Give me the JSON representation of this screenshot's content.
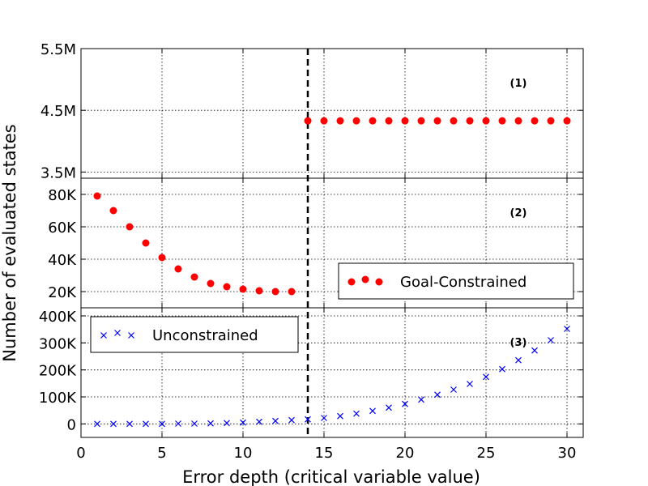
{
  "chart_data": {
    "type": "scatter",
    "xlabel": "Error depth (critical variable value)",
    "ylabel": "Number of evaluated states",
    "xlim": [
      0,
      31
    ],
    "xticks": [
      "0",
      "5",
      "10",
      "15",
      "20",
      "25",
      "30"
    ],
    "grid": true,
    "vline": {
      "x": 14,
      "style": "dashed"
    },
    "panels": [
      {
        "label": "(1)",
        "ylim": [
          3.4,
          5.5
        ],
        "yticks": [
          {
            "v": 3.5,
            "t": "3.5M"
          },
          {
            "v": 4.5,
            "t": "4.5M"
          },
          {
            "v": 5.5,
            "t": "5.5M"
          }
        ],
        "series": [
          {
            "name": "Goal-Constrained",
            "marker": "circle",
            "color": "#ff0000",
            "x": [
              14,
              15,
              16,
              17,
              18,
              19,
              20,
              21,
              22,
              23,
              24,
              25,
              26,
              27,
              28,
              29,
              30
            ],
            "y": [
              4.33,
              4.33,
              4.33,
              4.33,
              4.33,
              4.33,
              4.33,
              4.33,
              4.33,
              4.33,
              4.33,
              4.33,
              4.33,
              4.33,
              4.33,
              4.33,
              4.33
            ]
          }
        ]
      },
      {
        "label": "(2)",
        "ylim": [
          10,
          90
        ],
        "yticks": [
          {
            "v": 20,
            "t": "20K"
          },
          {
            "v": 40,
            "t": "40K"
          },
          {
            "v": 60,
            "t": "60K"
          },
          {
            "v": 80,
            "t": "80K"
          }
        ],
        "legend": {
          "entry": "Goal-Constrained",
          "position": "lower-right"
        },
        "series": [
          {
            "name": "Goal-Constrained",
            "marker": "circle",
            "color": "#ff0000",
            "x": [
              1,
              2,
              3,
              4,
              5,
              6,
              7,
              8,
              9,
              10,
              11,
              12,
              13
            ],
            "y": [
              79,
              70,
              60,
              50,
              41,
              34,
              29,
              25,
              23,
              21.5,
              20.5,
              20,
              20
            ]
          }
        ]
      },
      {
        "label": "(3)",
        "ylim": [
          -50,
          430
        ],
        "yticks": [
          {
            "v": 0,
            "t": "0"
          },
          {
            "v": 100,
            "t": "100K"
          },
          {
            "v": 200,
            "t": "200K"
          },
          {
            "v": 300,
            "t": "300K"
          },
          {
            "v": 400,
            "t": "400K"
          }
        ],
        "legend": {
          "entry": "Unconstrained",
          "position": "upper-left"
        },
        "series": [
          {
            "name": "Unconstrained",
            "marker": "x",
            "color": "#0000ff",
            "x": [
              1,
              2,
              3,
              4,
              5,
              6,
              7,
              8,
              9,
              10,
              11,
              12,
              13,
              14,
              15,
              16,
              17,
              18,
              19,
              20,
              21,
              22,
              23,
              24,
              25,
              26,
              27,
              28,
              29,
              30
            ],
            "y": [
              0,
              0,
              0,
              0,
              0,
              1,
              1,
              2,
              3,
              5,
              8,
              11,
              14,
              17,
              22,
              29,
              38,
              48,
              60,
              74,
              90,
              108,
              127,
              148,
              174,
              203,
              236,
              272,
              310,
              352
            ]
          }
        ]
      }
    ]
  }
}
